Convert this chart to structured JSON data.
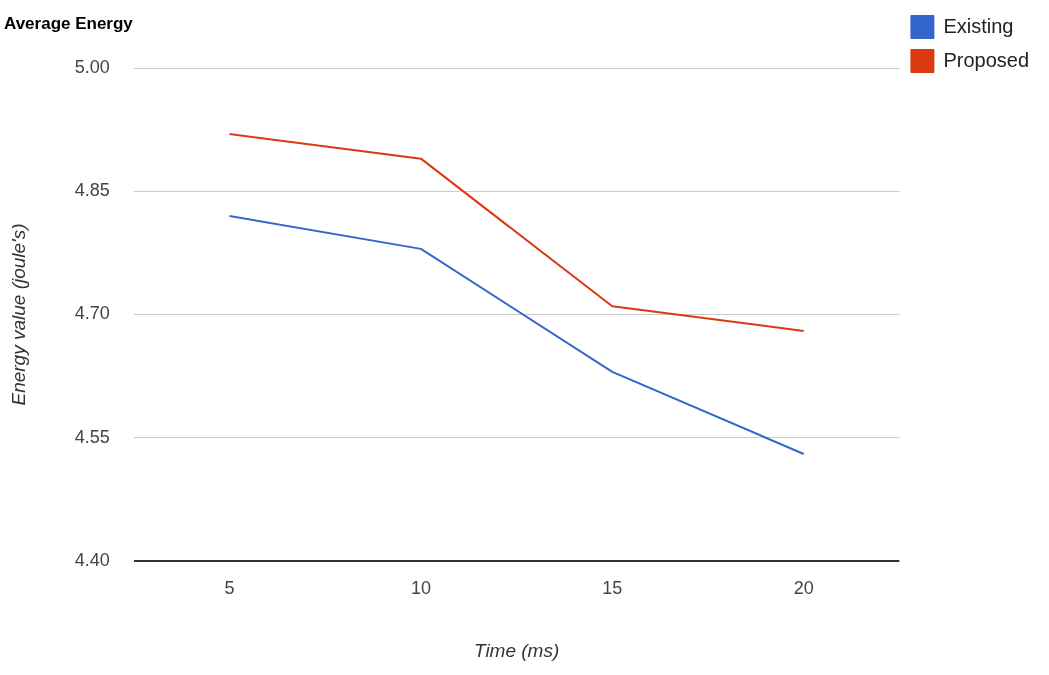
{
  "chart_data": {
    "type": "line",
    "title": "Average Energy",
    "xlabel": "Time (ms)",
    "ylabel": "Energy value (joule's)",
    "categories": [
      "5",
      "10",
      "15",
      "20"
    ],
    "series": [
      {
        "name": "Existing",
        "color": "#3366cc",
        "values": [
          4.82,
          4.78,
          4.63,
          4.53
        ]
      },
      {
        "name": "Proposed",
        "color": "#dc3912",
        "values": [
          4.92,
          4.89,
          4.71,
          4.68
        ]
      }
    ],
    "ylim": [
      4.4,
      5.0
    ],
    "yticks": [
      {
        "value": 4.4,
        "label": "4.40"
      },
      {
        "value": 4.55,
        "label": "4.55"
      },
      {
        "value": 4.7,
        "label": "4.70"
      },
      {
        "value": 4.85,
        "label": "4.85"
      },
      {
        "value": 5.0,
        "label": "5.00"
      }
    ],
    "grid": "y",
    "legend": "right",
    "marker": "none",
    "line_style": "solid"
  }
}
